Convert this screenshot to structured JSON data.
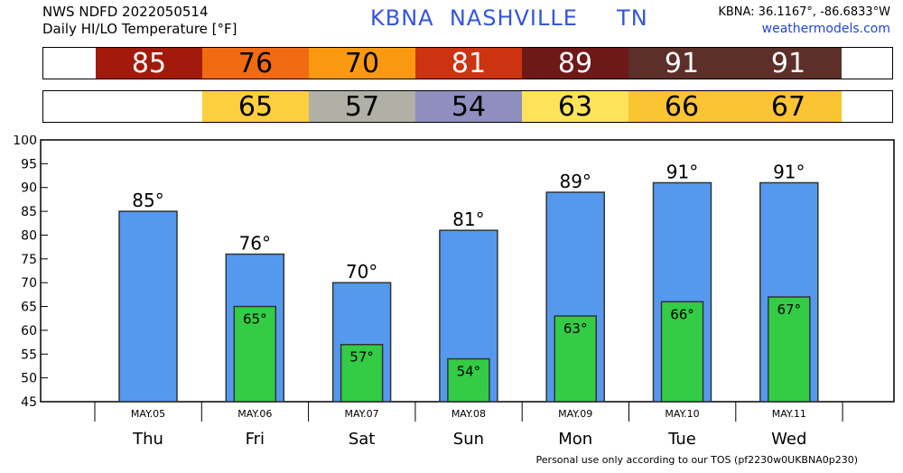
{
  "header": {
    "line1": "NWS NDFD 2022050514",
    "line2": "Daily HI/LO Temperature [°F]",
    "station": "KBNA  NASHVILLE     TN",
    "coords": "KBNA: 36.1167°, -86.6833°W",
    "site": "weathermodels.com"
  },
  "strips": {
    "hi": [
      {
        "value": "85",
        "color": "#a31a0c",
        "text_color": "#ffffff"
      },
      {
        "value": "76",
        "color": "#f26a12",
        "text_color": "#000000"
      },
      {
        "value": "70",
        "color": "#fb9a10",
        "text_color": "#000000"
      },
      {
        "value": "81",
        "color": "#cc3310",
        "text_color": "#ffffff"
      },
      {
        "value": "89",
        "color": "#6e1818",
        "text_color": "#ffffff"
      },
      {
        "value": "91",
        "color": "#5c2f28",
        "text_color": "#ffffff"
      },
      {
        "value": "91",
        "color": "#5c2f28",
        "text_color": "#ffffff"
      }
    ],
    "lo": [
      {
        "value": "",
        "color": "#ffffff",
        "text_color": "#000000"
      },
      {
        "value": "65",
        "color": "#fbcf3e",
        "text_color": "#000000"
      },
      {
        "value": "57",
        "color": "#b0b0a6",
        "text_color": "#000000"
      },
      {
        "value": "54",
        "color": "#8f8fbf",
        "text_color": "#000000"
      },
      {
        "value": "63",
        "color": "#fce35a",
        "text_color": "#000000"
      },
      {
        "value": "66",
        "color": "#fbc432",
        "text_color": "#000000"
      },
      {
        "value": "67",
        "color": "#fbc432",
        "text_color": "#000000"
      }
    ]
  },
  "chart_data": {
    "type": "bar",
    "categories": [
      "Thu",
      "Fri",
      "Sat",
      "Sun",
      "Mon",
      "Tue",
      "Wed"
    ],
    "dates": [
      "MAY.05",
      "MAY.06",
      "MAY.07",
      "MAY.08",
      "MAY.09",
      "MAY.10",
      "MAY.11"
    ],
    "series": [
      {
        "values": [
          85,
          76,
          70,
          81,
          89,
          91,
          91
        ],
        "color": "#5599ee",
        "label_suffix": "°"
      },
      {
        "values": [
          null,
          65,
          57,
          54,
          63,
          66,
          67
        ],
        "color": "#33cc44",
        "label_suffix": "°"
      }
    ],
    "ylim": [
      45,
      100
    ],
    "yticks": [
      45,
      50,
      55,
      60,
      65,
      70,
      75,
      80,
      85,
      90,
      95,
      100
    ],
    "grid": false
  },
  "footer": "Personal use only according to our TOS (pf2230w0UKBNA0p230)"
}
